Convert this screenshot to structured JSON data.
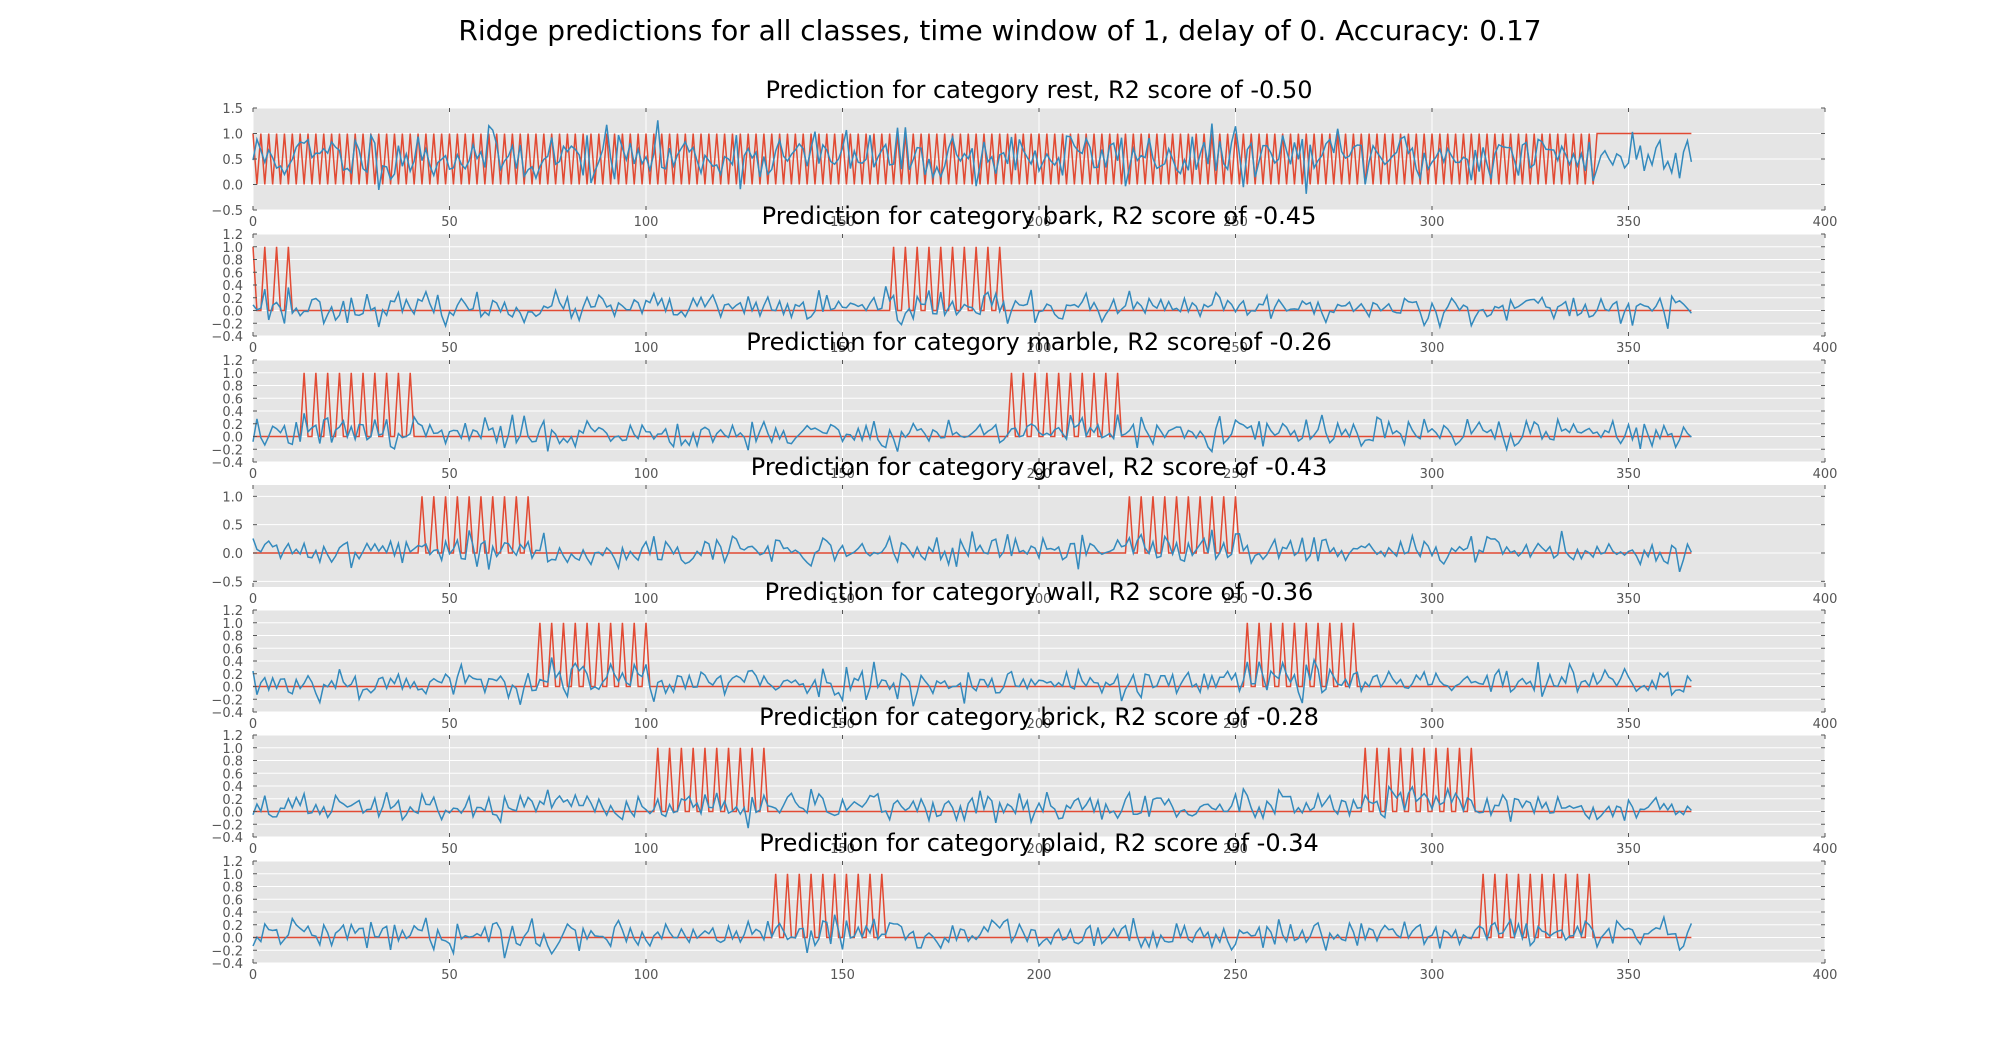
{
  "figure": {
    "title": "Ridge predictions for all classes, time window of 1, delay of 0. Accuracy: 0.17"
  },
  "colors": {
    "target": "#e24a33",
    "prediction": "#348abd",
    "axes_bg": "#e5e5e5",
    "grid": "#ffffff",
    "tick_text": "#555555"
  },
  "chart_data": [
    {
      "type": "line",
      "title": "Prediction for category rest, R2 score of -0.50",
      "xlim": [
        0,
        400
      ],
      "ylim": [
        -0.5,
        1.5
      ],
      "xticks": [
        0,
        50,
        100,
        150,
        200,
        250,
        300,
        350,
        400
      ],
      "yticks": [
        -0.5,
        0.0,
        0.5,
        1.0,
        1.5
      ],
      "xticklabels": [
        "0",
        "50",
        "100",
        "150",
        "200",
        "250",
        "300",
        "350",
        "400"
      ],
      "yticklabels": [
        "−0.5",
        "0.0",
        "0.5",
        "1.0",
        "1.5"
      ],
      "grid": true,
      "n_points": 367,
      "target_windows": [],
      "target_mode": "rest",
      "rest_constant_from": 342,
      "prediction": {
        "mean": 0.55,
        "std": 0.26,
        "onset_boost": 0.0,
        "seed": 11
      }
    },
    {
      "type": "line",
      "title": "Prediction for category bark, R2 score of -0.45",
      "xlim": [
        0,
        400
      ],
      "ylim": [
        -0.4,
        1.2
      ],
      "xticks": [
        0,
        50,
        100,
        150,
        200,
        250,
        300,
        350,
        400
      ],
      "yticks": [
        -0.4,
        -0.2,
        0.0,
        0.2,
        0.4,
        0.6,
        0.8,
        1.0,
        1.2
      ],
      "xticklabels": [
        "0",
        "50",
        "100",
        "150",
        "200",
        "250",
        "300",
        "350",
        "400"
      ],
      "yticklabels": [
        "−0.4",
        "−0.2",
        "0.0",
        "0.2",
        "0.4",
        "0.6",
        "0.8",
        "1.0",
        "1.2"
      ],
      "grid": true,
      "n_points": 367,
      "target_windows": [
        [
          0,
          11
        ],
        [
          163,
          191
        ]
      ],
      "target_mode": "category",
      "prediction": {
        "mean": 0.04,
        "std": 0.11,
        "onset_boost": 0.3,
        "seed": 23
      }
    },
    {
      "type": "line",
      "title": "Prediction for category marble, R2 score of -0.26",
      "xlim": [
        0,
        400
      ],
      "ylim": [
        -0.4,
        1.2
      ],
      "xticks": [
        0,
        50,
        100,
        150,
        200,
        250,
        300,
        350,
        400
      ],
      "yticks": [
        -0.4,
        -0.2,
        0.0,
        0.2,
        0.4,
        0.6,
        0.8,
        1.0,
        1.2
      ],
      "xticklabels": [
        "0",
        "50",
        "100",
        "150",
        "200",
        "250",
        "300",
        "350",
        "400"
      ],
      "yticklabels": [
        "−0.4",
        "−0.2",
        "0.0",
        "0.2",
        "0.4",
        "0.6",
        "0.8",
        "1.0",
        "1.2"
      ],
      "grid": true,
      "n_points": 367,
      "target_windows": [
        [
          13,
          41
        ],
        [
          193,
          221
        ]
      ],
      "target_mode": "category",
      "prediction": {
        "mean": 0.05,
        "std": 0.12,
        "onset_boost": 0.2,
        "seed": 37
      }
    },
    {
      "type": "line",
      "title": "Prediction for category gravel, R2 score of -0.43",
      "xlim": [
        0,
        400
      ],
      "ylim": [
        -0.6,
        1.2
      ],
      "xticks": [
        0,
        50,
        100,
        150,
        200,
        250,
        300,
        350,
        400
      ],
      "yticks": [
        -0.5,
        0.0,
        0.5,
        1.0
      ],
      "xticklabels": [
        "0",
        "50",
        "100",
        "150",
        "200",
        "250",
        "300",
        "350",
        "400"
      ],
      "yticklabels": [
        "−0.5",
        "0.0",
        "0.5",
        "1.0"
      ],
      "grid": true,
      "n_points": 367,
      "target_windows": [
        [
          43,
          71
        ],
        [
          223,
          251
        ]
      ],
      "target_mode": "category",
      "prediction": {
        "mean": 0.04,
        "std": 0.13,
        "onset_boost": 0.25,
        "seed": 41
      }
    },
    {
      "type": "line",
      "title": "Prediction for category wall, R2 score of -0.36",
      "xlim": [
        0,
        400
      ],
      "ylim": [
        -0.4,
        1.2
      ],
      "xticks": [
        0,
        50,
        100,
        150,
        200,
        250,
        300,
        350,
        400
      ],
      "yticks": [
        -0.4,
        -0.2,
        0.0,
        0.2,
        0.4,
        0.6,
        0.8,
        1.0,
        1.2
      ],
      "xticklabels": [
        "0",
        "50",
        "100",
        "150",
        "200",
        "250",
        "300",
        "350",
        "400"
      ],
      "yticklabels": [
        "−0.4",
        "−0.2",
        "0.0",
        "0.2",
        "0.4",
        "0.6",
        "0.8",
        "1.0",
        "1.2"
      ],
      "grid": true,
      "n_points": 367,
      "target_windows": [
        [
          73,
          101
        ],
        [
          253,
          281
        ]
      ],
      "target_mode": "category",
      "prediction": {
        "mean": 0.06,
        "std": 0.13,
        "onset_boost": 0.2,
        "seed": 53
      }
    },
    {
      "type": "line",
      "title": "Prediction for category brick, R2 score of -0.28",
      "xlim": [
        0,
        400
      ],
      "ylim": [
        -0.4,
        1.2
      ],
      "xticks": [
        0,
        50,
        100,
        150,
        200,
        250,
        300,
        350,
        400
      ],
      "yticks": [
        -0.4,
        -0.2,
        0.0,
        0.2,
        0.4,
        0.6,
        0.8,
        1.0,
        1.2
      ],
      "xticklabels": [
        "0",
        "50",
        "100",
        "150",
        "200",
        "250",
        "300",
        "350",
        "400"
      ],
      "yticklabels": [
        "−0.4",
        "−0.2",
        "0.0",
        "0.2",
        "0.4",
        "0.6",
        "0.8",
        "1.0",
        "1.2"
      ],
      "grid": true,
      "n_points": 367,
      "target_windows": [
        [
          103,
          131
        ],
        [
          283,
          311
        ]
      ],
      "target_mode": "category",
      "prediction": {
        "mean": 0.06,
        "std": 0.11,
        "onset_boost": 0.2,
        "seed": 67
      }
    },
    {
      "type": "line",
      "title": "Prediction for category plaid, R2 score of -0.34",
      "xlim": [
        0,
        400
      ],
      "ylim": [
        -0.4,
        1.2
      ],
      "xticks": [
        0,
        50,
        100,
        150,
        200,
        250,
        300,
        350,
        400
      ],
      "yticks": [
        -0.4,
        -0.2,
        0.0,
        0.2,
        0.4,
        0.6,
        0.8,
        1.0,
        1.2
      ],
      "xticklabels": [
        "0",
        "50",
        "100",
        "150",
        "200",
        "250",
        "300",
        "350",
        "400"
      ],
      "yticklabels": [
        "−0.4",
        "−0.2",
        "0.0",
        "0.2",
        "0.4",
        "0.6",
        "0.8",
        "1.0",
        "1.2"
      ],
      "grid": true,
      "n_points": 367,
      "target_windows": [
        [
          133,
          161
        ],
        [
          313,
          341
        ]
      ],
      "target_mode": "category",
      "prediction": {
        "mean": 0.05,
        "std": 0.12,
        "onset_boost": 0.2,
        "seed": 79
      }
    }
  ]
}
